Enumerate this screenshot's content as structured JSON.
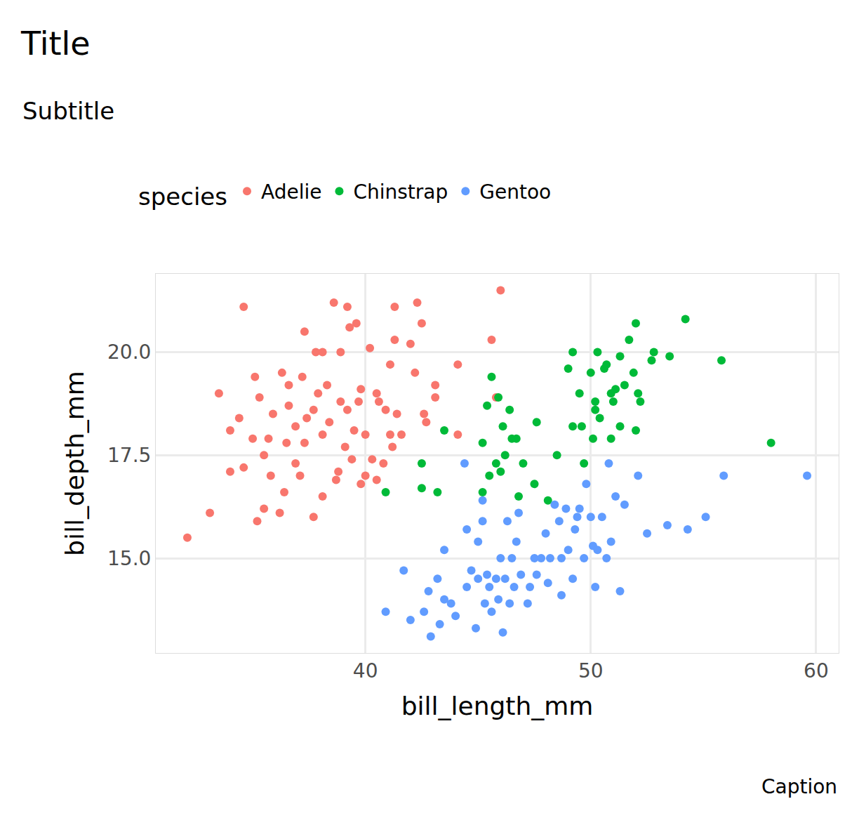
{
  "chart_data": {
    "type": "scatter",
    "title": "Title",
    "subtitle": "Subtitle",
    "caption": "Caption",
    "x_label": "bill_length_mm",
    "y_label": "bill_depth_mm",
    "legend_title": "species",
    "legend": "top",
    "grid": true,
    "marker": "circle",
    "xlim": [
      30.7,
      61.0
    ],
    "ylim": [
      12.7,
      21.9
    ],
    "xticks": [
      40,
      50,
      60
    ],
    "yticks": [
      {
        "value": 15,
        "label": "15.0"
      },
      17.5,
      {
        "value": 20,
        "label": "20.0"
      }
    ],
    "series": [
      {
        "name": "Adelie",
        "color": "#F8766D",
        "x": [
          32.1,
          33.1,
          33.5,
          34.0,
          34.4,
          34.6,
          34.0,
          34.6,
          35.0,
          35.1,
          35.2,
          35.3,
          35.5,
          35.5,
          35.7,
          35.9,
          35.8,
          36.2,
          36.3,
          36.4,
          36.6,
          36.6,
          36.5,
          36.9,
          37.1,
          37.2,
          37.3,
          37.4,
          37.3,
          37.7,
          37.8,
          37.9,
          38.1,
          38.1,
          38.3,
          38.4,
          38.6,
          38.8,
          38.9,
          39.2,
          39.3,
          38.9,
          39.1,
          39.2,
          39.4,
          39.6,
          39.5,
          39.7,
          39.8,
          39.8,
          40.0,
          40.2,
          40.3,
          40.5,
          40.6,
          40.8,
          40.9,
          41.1,
          41.3,
          41.3,
          41.4,
          41.6,
          42.0,
          42.2,
          42.3,
          42.5,
          42.6,
          42.7,
          43.1,
          43.1,
          44.1,
          44.1,
          45.6,
          46.0,
          45.8,
          40.5,
          36.9,
          37.7,
          38.1,
          38.7,
          40.0,
          41.1,
          41.2
        ],
        "values": [
          15.5,
          16.1,
          19.0,
          18.1,
          18.4,
          21.1,
          17.1,
          17.2,
          17.9,
          19.4,
          15.9,
          18.9,
          17.5,
          16.2,
          17.9,
          18.5,
          17.0,
          16.1,
          19.5,
          16.6,
          19.2,
          18.7,
          17.8,
          17.3,
          17.0,
          19.4,
          20.5,
          18.4,
          17.8,
          16.0,
          20.0,
          19.0,
          16.5,
          20.0,
          19.2,
          18.3,
          21.2,
          17.1,
          20.0,
          21.1,
          20.6,
          18.8,
          17.7,
          18.6,
          17.4,
          20.7,
          18.1,
          18.8,
          19.1,
          16.8,
          18.0,
          20.1,
          17.4,
          19.0,
          18.8,
          17.3,
          18.6,
          19.7,
          21.1,
          20.3,
          18.5,
          18.0,
          20.2,
          19.5,
          21.2,
          20.7,
          18.5,
          18.3,
          19.2,
          18.9,
          19.7,
          18.0,
          20.3,
          21.5,
          18.9,
          16.9,
          18.2,
          18.6,
          18.0,
          16.9,
          17.0,
          18.0,
          17.7
        ]
      },
      {
        "name": "Chinstrap",
        "color": "#00BA38",
        "x": [
          40.9,
          42.5,
          42.5,
          43.2,
          43.5,
          45.2,
          45.2,
          45.4,
          45.5,
          45.6,
          45.8,
          45.9,
          46.0,
          46.1,
          46.2,
          46.4,
          46.5,
          46.7,
          46.8,
          47.0,
          47.5,
          47.6,
          48.1,
          48.5,
          49.0,
          49.2,
          49.2,
          49.5,
          49.6,
          49.7,
          50.0,
          50.1,
          50.2,
          50.2,
          50.3,
          50.4,
          50.6,
          50.7,
          50.9,
          50.9,
          51.0,
          51.1,
          51.3,
          51.3,
          51.5,
          51.7,
          51.9,
          52.0,
          52.0,
          52.1,
          52.2,
          52.7,
          52.8,
          53.5,
          54.2,
          55.8,
          58.0
        ],
        "values": [
          16.6,
          17.3,
          16.7,
          16.6,
          18.1,
          17.8,
          16.6,
          18.7,
          17.0,
          19.4,
          17.3,
          18.9,
          17.1,
          18.2,
          17.5,
          18.6,
          17.9,
          17.9,
          16.5,
          17.3,
          16.8,
          18.3,
          16.4,
          17.5,
          19.6,
          18.2,
          20.0,
          19.0,
          18.2,
          17.3,
          19.5,
          17.9,
          18.8,
          18.6,
          20.0,
          18.4,
          19.6,
          19.7,
          19.0,
          17.9,
          18.8,
          19.1,
          18.2,
          19.9,
          19.2,
          20.3,
          19.5,
          18.1,
          20.7,
          19.0,
          18.8,
          19.8,
          20.0,
          19.9,
          20.8,
          19.8,
          17.8
        ]
      },
      {
        "name": "Gentoo",
        "color": "#619CFF",
        "x": [
          40.9,
          41.7,
          42.0,
          42.6,
          42.8,
          42.9,
          43.2,
          43.3,
          43.5,
          43.5,
          43.8,
          44.0,
          44.4,
          44.5,
          44.5,
          44.7,
          44.9,
          45.0,
          45.0,
          45.2,
          45.2,
          45.3,
          45.4,
          45.5,
          45.6,
          45.8,
          45.9,
          46.0,
          46.1,
          46.2,
          46.3,
          46.4,
          46.5,
          46.6,
          46.7,
          46.8,
          46.9,
          47.2,
          47.3,
          47.5,
          47.6,
          47.8,
          48.0,
          48.1,
          48.2,
          48.4,
          48.6,
          48.7,
          48.7,
          48.9,
          49.0,
          49.2,
          49.3,
          49.4,
          49.5,
          49.7,
          49.8,
          50.0,
          50.1,
          50.2,
          50.3,
          50.5,
          50.7,
          50.8,
          50.9,
          51.1,
          51.3,
          51.5,
          52.1,
          52.5,
          53.4,
          54.3,
          55.1,
          55.9,
          59.6
        ],
        "values": [
          13.7,
          14.7,
          13.5,
          13.7,
          14.2,
          13.1,
          14.5,
          13.4,
          14.0,
          15.2,
          13.9,
          13.6,
          17.3,
          15.7,
          14.3,
          14.7,
          13.3,
          15.4,
          14.5,
          15.9,
          16.4,
          13.9,
          14.6,
          14.3,
          13.7,
          14.5,
          14.0,
          15.0,
          13.2,
          14.5,
          15.9,
          13.9,
          15.0,
          14.3,
          15.4,
          16.1,
          14.6,
          13.9,
          14.3,
          15.0,
          14.6,
          15.0,
          15.6,
          14.4,
          15.0,
          16.3,
          15.9,
          14.1,
          15.0,
          16.2,
          15.2,
          14.5,
          15.7,
          16.0,
          16.2,
          15.0,
          16.8,
          16.0,
          15.3,
          14.3,
          15.2,
          16.0,
          15.0,
          17.3,
          15.4,
          16.5,
          14.2,
          16.3,
          17.0,
          15.6,
          15.8,
          15.7,
          16.0,
          17.0,
          17.0
        ]
      }
    ]
  }
}
